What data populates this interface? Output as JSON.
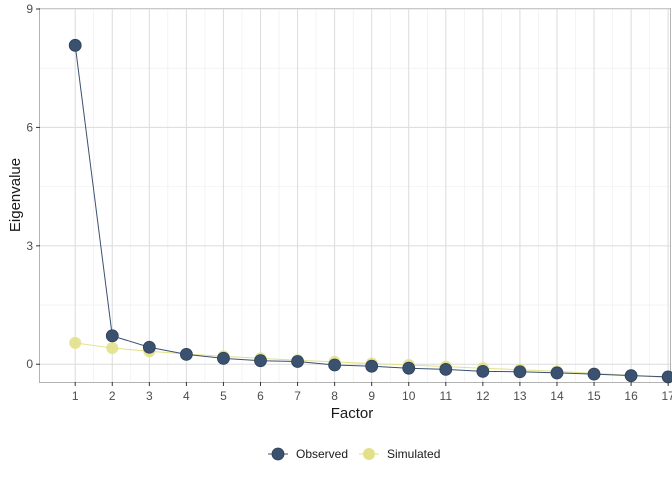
{
  "chart_data": {
    "type": "line",
    "xlabel": "Factor",
    "ylabel": "Eigenvalue",
    "x": [
      1,
      2,
      3,
      4,
      5,
      6,
      7,
      8,
      9,
      10,
      11,
      12,
      13,
      14,
      15,
      16,
      17
    ],
    "xlim": [
      0.05,
      17.05
    ],
    "ylim": [
      -0.45,
      9
    ],
    "yticks": [
      0,
      3,
      6,
      9
    ],
    "grid": true,
    "legend_position": "bottom",
    "series": [
      {
        "name": "Observed",
        "color": "#3b5170",
        "values": [
          8.08,
          0.72,
          0.43,
          0.25,
          0.15,
          0.09,
          0.07,
          -0.02,
          -0.05,
          -0.1,
          -0.13,
          -0.18,
          -0.19,
          -0.22,
          -0.25,
          -0.29,
          -0.32
        ]
      },
      {
        "name": "Simulated",
        "color": "#e2e18a",
        "values": [
          0.54,
          0.41,
          0.33,
          0.26,
          0.2,
          0.15,
          0.1,
          0.06,
          0.02,
          -0.02,
          -0.06,
          -0.1,
          -0.14,
          -0.18,
          -0.23,
          -0.28,
          -0.34
        ]
      }
    ]
  }
}
